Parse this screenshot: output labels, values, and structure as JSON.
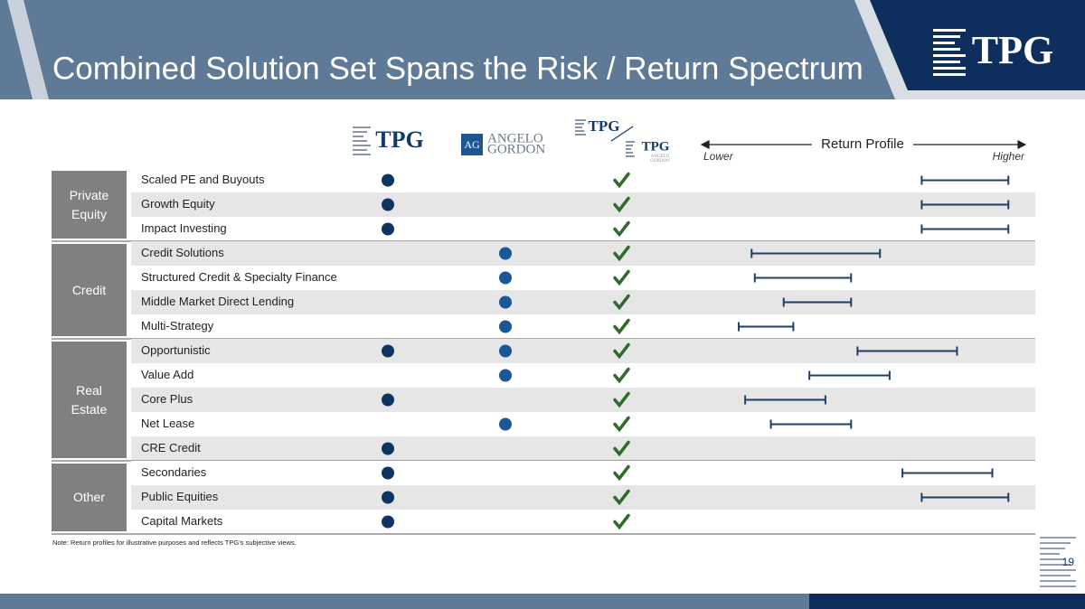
{
  "header": {
    "title": "Combined Solution Set Spans the Risk / Return Spectrum",
    "brand": "TPG"
  },
  "columns": {
    "tpg": "TPG",
    "ag_monogram": "AG",
    "ag_name_1": "ANGELO",
    "ag_name_2": "GORDON",
    "combined_tpg": "TPG",
    "combined_tpg_2": "TPG",
    "combined_ag_1": "ANGELO",
    "combined_ag_2": "GORDON"
  },
  "return_profile": {
    "label": "Return Profile",
    "low": "Lower",
    "high": "Higher",
    "scale": [
      0,
      100
    ]
  },
  "groups": [
    {
      "name": "Private Equity",
      "rows": [
        {
          "label": "Scaled PE and Buyouts",
          "tpg": true,
          "ag": false,
          "combined": true,
          "range": [
            68,
            95
          ]
        },
        {
          "label": "Growth Equity",
          "tpg": true,
          "ag": false,
          "combined": true,
          "range": [
            68,
            95
          ]
        },
        {
          "label": "Impact Investing",
          "tpg": true,
          "ag": false,
          "combined": true,
          "range": [
            68,
            95
          ]
        }
      ]
    },
    {
      "name": "Credit",
      "rows": [
        {
          "label": "Credit Solutions",
          "tpg": false,
          "ag": true,
          "combined": true,
          "range": [
            15,
            55
          ]
        },
        {
          "label": "Structured Credit & Specialty Finance",
          "tpg": false,
          "ag": true,
          "combined": true,
          "range": [
            16,
            46
          ]
        },
        {
          "label": "Middle Market Direct Lending",
          "tpg": false,
          "ag": true,
          "combined": true,
          "range": [
            25,
            46
          ]
        },
        {
          "label": "Multi-Strategy",
          "tpg": false,
          "ag": true,
          "combined": true,
          "range": [
            11,
            28
          ]
        }
      ]
    },
    {
      "name": "Real Estate",
      "rows": [
        {
          "label": "Opportunistic",
          "tpg": true,
          "ag": true,
          "combined": true,
          "range": [
            48,
            79
          ]
        },
        {
          "label": "Value Add",
          "tpg": false,
          "ag": true,
          "combined": true,
          "range": [
            33,
            58
          ]
        },
        {
          "label": "Core Plus",
          "tpg": true,
          "ag": false,
          "combined": true,
          "range": [
            13,
            38
          ]
        },
        {
          "label": "Net Lease",
          "tpg": false,
          "ag": true,
          "combined": true,
          "range": [
            21,
            46
          ]
        },
        {
          "label": "CRE Credit",
          "tpg": true,
          "ag": false,
          "combined": true,
          "range": null
        }
      ]
    },
    {
      "name": "Other",
      "rows": [
        {
          "label": "Secondaries",
          "tpg": true,
          "ag": false,
          "combined": true,
          "range": [
            62,
            90
          ]
        },
        {
          "label": "Public Equities",
          "tpg": true,
          "ag": false,
          "combined": true,
          "range": [
            68,
            95
          ]
        },
        {
          "label": "Capital Markets",
          "tpg": true,
          "ag": false,
          "combined": true,
          "range": null
        }
      ]
    }
  ],
  "note": "Note: Return profiles for illustrative purposes and reflects TPG’s subjective views.",
  "page_number": "19"
}
